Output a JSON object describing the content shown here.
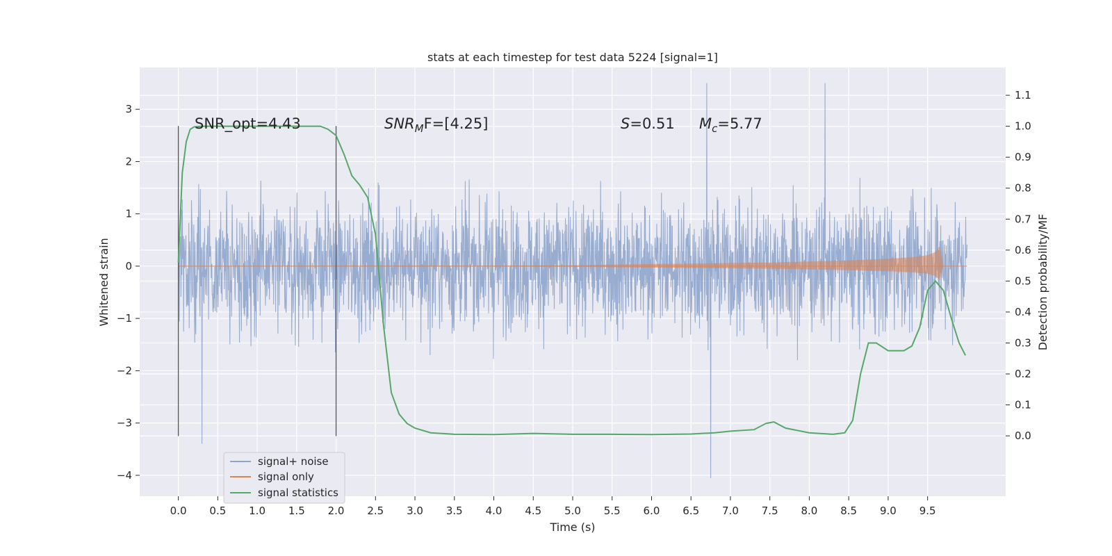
{
  "chart_data": {
    "type": "line",
    "title": "stats at each timestep for test data 5224 [signal=1]",
    "xlabel": "Time (s)",
    "ylabel_left": "Whitened strain",
    "ylabel_right": "Detection probability/MF",
    "xlim": [
      -0.49,
      10.49
    ],
    "ylim_left": [
      -4.4,
      3.8
    ],
    "ylim_right": [
      -0.195,
      1.19
    ],
    "x_ticks": [
      "0.0",
      "0.5",
      "1.0",
      "1.5",
      "2.0",
      "2.5",
      "3.0",
      "3.5",
      "4.0",
      "4.5",
      "5.0",
      "5.5",
      "6.0",
      "6.5",
      "7.0",
      "7.5",
      "8.0",
      "8.5",
      "9.0",
      "9.5"
    ],
    "x_tick_values": [
      0,
      0.5,
      1,
      1.5,
      2,
      2.5,
      3,
      3.5,
      4,
      4.5,
      5,
      5.5,
      6,
      6.5,
      7,
      7.5,
      8,
      8.5,
      9,
      9.5
    ],
    "y_ticks_left": [
      "3",
      "2",
      "1",
      "0",
      "−1",
      "−2",
      "−3",
      "−4"
    ],
    "y_tick_values_left": [
      3,
      2,
      1,
      0,
      -1,
      -2,
      -3,
      -4
    ],
    "y_ticks_right": [
      "1.1",
      "1.0",
      "0.9",
      "0.8",
      "0.7",
      "0.6",
      "0.5",
      "0.4",
      "0.3",
      "0.2",
      "0.1",
      "0.0"
    ],
    "y_tick_values_right": [
      1.1,
      1.0,
      0.9,
      0.8,
      0.7,
      0.6,
      0.5,
      0.4,
      0.3,
      0.2,
      0.1,
      0.0
    ],
    "grid": true,
    "legend_position": "lower-left",
    "annotations": {
      "snr_opt": "SNR_opt=4.43",
      "snr_mf_main": "SNR",
      "snr_mf_sub": "M",
      "snr_mf_rest": "F=[4.25]",
      "s_main": "S",
      "s_rest": "=0.51",
      "mc_main": "M",
      "mc_sub": "c",
      "mc_rest": "=5.77"
    },
    "vlines": [
      {
        "x": 0.0,
        "ymin": -3.25,
        "ymax": 2.68
      },
      {
        "x": 2.0,
        "ymin": -3.25,
        "ymax": 2.68
      }
    ],
    "series": [
      {
        "name": "signal+ noise",
        "color": "#8fa5cc",
        "x_range": [
          0,
          10
        ],
        "typical_amplitude": [
          -1.6,
          1.6
        ],
        "peak_max": 3.5,
        "peak_min": -4.05,
        "notable_extremes": [
          {
            "x": 0.3,
            "y": -3.4
          },
          {
            "x": 6.7,
            "y": 3.5
          },
          {
            "x": 6.75,
            "y": -4.05
          },
          {
            "x": 8.2,
            "y": 3.5
          }
        ]
      },
      {
        "name": "signal only",
        "color": "#dd8452",
        "axis": "left",
        "x": [
          0,
          3,
          4,
          5,
          5.5,
          6,
          6.5,
          7,
          7.5,
          8,
          8.5,
          9,
          9.3,
          9.5,
          9.6,
          9.65,
          9.7
        ],
        "amplitude": [
          0.005,
          0.01,
          0.01,
          0.015,
          0.03,
          0.04,
          0.05,
          0.06,
          0.07,
          0.09,
          0.11,
          0.14,
          0.17,
          0.21,
          0.27,
          0.38,
          0.0
        ]
      },
      {
        "name": "signal statistics",
        "color": "#55a868",
        "axis": "right",
        "x": [
          0,
          0.05,
          0.1,
          0.15,
          0.2,
          0.3,
          0.5,
          1.0,
          1.5,
          1.8,
          1.9,
          2.0,
          2.1,
          2.2,
          2.3,
          2.4,
          2.5,
          2.6,
          2.7,
          2.8,
          2.9,
          3.0,
          3.2,
          3.5,
          4.0,
          4.5,
          5.0,
          5.5,
          6.0,
          6.5,
          6.8,
          7.0,
          7.3,
          7.45,
          7.55,
          7.7,
          8.0,
          8.3,
          8.45,
          8.55,
          8.65,
          8.75,
          8.85,
          9.0,
          9.2,
          9.3,
          9.4,
          9.5,
          9.6,
          9.7,
          9.8,
          9.9,
          9.98
        ],
        "y": [
          0.56,
          0.85,
          0.95,
          0.99,
          0.998,
          1.0,
          1.0,
          1.0,
          1.0,
          1.0,
          0.99,
          0.97,
          0.91,
          0.84,
          0.81,
          0.77,
          0.65,
          0.36,
          0.14,
          0.07,
          0.04,
          0.025,
          0.01,
          0.005,
          0.004,
          0.008,
          0.005,
          0.005,
          0.004,
          0.006,
          0.01,
          0.015,
          0.02,
          0.04,
          0.045,
          0.025,
          0.01,
          0.005,
          0.01,
          0.05,
          0.2,
          0.3,
          0.3,
          0.275,
          0.275,
          0.29,
          0.35,
          0.47,
          0.5,
          0.47,
          0.38,
          0.3,
          0.26
        ]
      }
    ]
  }
}
